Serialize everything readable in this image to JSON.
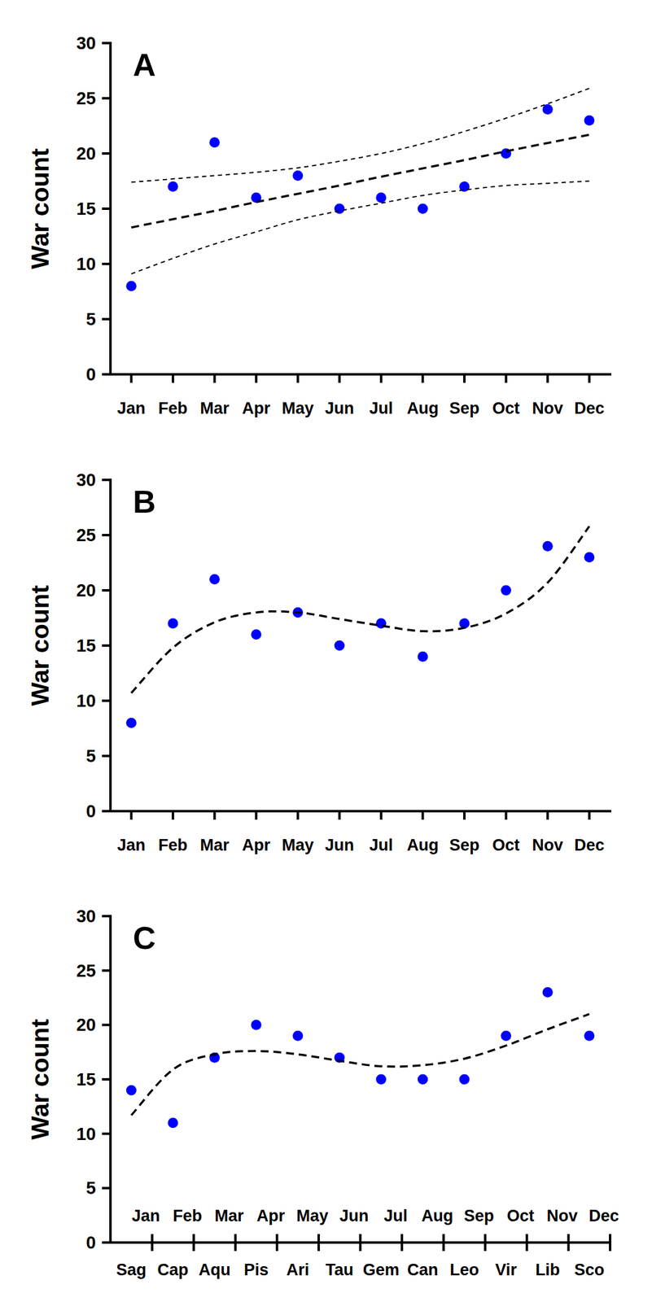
{
  "chart_data": [
    {
      "type": "scatter",
      "title": "A",
      "y_label": "War count",
      "categories": [
        "Jan",
        "Feb",
        "Mar",
        "Apr",
        "May",
        "Jun",
        "Jul",
        "Aug",
        "Sep",
        "Oct",
        "Nov",
        "Dec"
      ],
      "ylim": [
        0,
        30
      ],
      "yticks": [
        0,
        5,
        10,
        15,
        20,
        25,
        30
      ],
      "grid": false,
      "series": [
        {
          "type": "scatter",
          "marker": "circle",
          "color": "#0000ff",
          "values": [
            8,
            17,
            21,
            16,
            18,
            15,
            16,
            15,
            17,
            20,
            24,
            23
          ]
        },
        {
          "type": "line",
          "line_style": "dashed",
          "color": "#000000",
          "values": [
            13.3,
            14.05,
            14.8,
            15.6,
            16.35,
            17.1,
            17.9,
            18.65,
            19.4,
            20.2,
            20.95,
            21.7
          ]
        },
        {
          "type": "line",
          "line_style": "short-dashed",
          "color": "#000000",
          "values": [
            17.4,
            17.7,
            18.0,
            18.3,
            18.7,
            19.3,
            20.0,
            20.9,
            22.0,
            23.2,
            24.5,
            25.9
          ]
        },
        {
          "type": "line",
          "line_style": "short-dashed",
          "color": "#000000",
          "values": [
            9.1,
            10.5,
            11.8,
            12.9,
            14.0,
            14.8,
            15.5,
            16.2,
            16.7,
            17.1,
            17.3,
            17.5
          ]
        }
      ]
    },
    {
      "type": "scatter",
      "title": "B",
      "y_label": "War count",
      "categories": [
        "Jan",
        "Feb",
        "Mar",
        "Apr",
        "May",
        "Jun",
        "Jul",
        "Aug",
        "Sep",
        "Oct",
        "Nov",
        "Dec"
      ],
      "ylim": [
        0,
        30
      ],
      "yticks": [
        0,
        5,
        10,
        15,
        20,
        25,
        30
      ],
      "grid": false,
      "series": [
        {
          "type": "scatter",
          "marker": "circle",
          "color": "#0000ff",
          "values": [
            8,
            17,
            21,
            16,
            18,
            15,
            17,
            14,
            17,
            20,
            24,
            23
          ]
        },
        {
          "type": "line",
          "line_style": "dashed",
          "color": "#000000",
          "values": [
            10.7,
            14.8,
            17.1,
            18.0,
            18.0,
            17.4,
            16.8,
            16.3,
            16.6,
            17.9,
            20.7,
            25.8
          ]
        }
      ]
    },
    {
      "type": "scatter",
      "title": "C",
      "y_label": "War count",
      "categories": [
        "Sag",
        "Cap",
        "Aqu",
        "Pis",
        "Ari",
        "Tau",
        "Gem",
        "Can",
        "Leo",
        "Vir",
        "Lib",
        "Sco"
      ],
      "x2_categories": [
        "Jan",
        "Feb",
        "Mar",
        "Apr",
        "May",
        "Jun",
        "Jul",
        "Aug",
        "Sep",
        "Oct",
        "Nov",
        "Dec"
      ],
      "ylim": [
        0,
        30
      ],
      "yticks": [
        0,
        5,
        10,
        15,
        20,
        25,
        30
      ],
      "grid": false,
      "series": [
        {
          "type": "scatter",
          "marker": "circle",
          "color": "#0000ff",
          "values": [
            14,
            11,
            17,
            20,
            19,
            17,
            15,
            15,
            15,
            19,
            23,
            19
          ]
        },
        {
          "type": "line",
          "line_style": "dashed",
          "color": "#000000",
          "values": [
            11.7,
            15.9,
            17.3,
            17.6,
            17.3,
            16.7,
            16.2,
            16.3,
            16.9,
            18.1,
            19.6,
            21.0
          ]
        }
      ]
    }
  ]
}
